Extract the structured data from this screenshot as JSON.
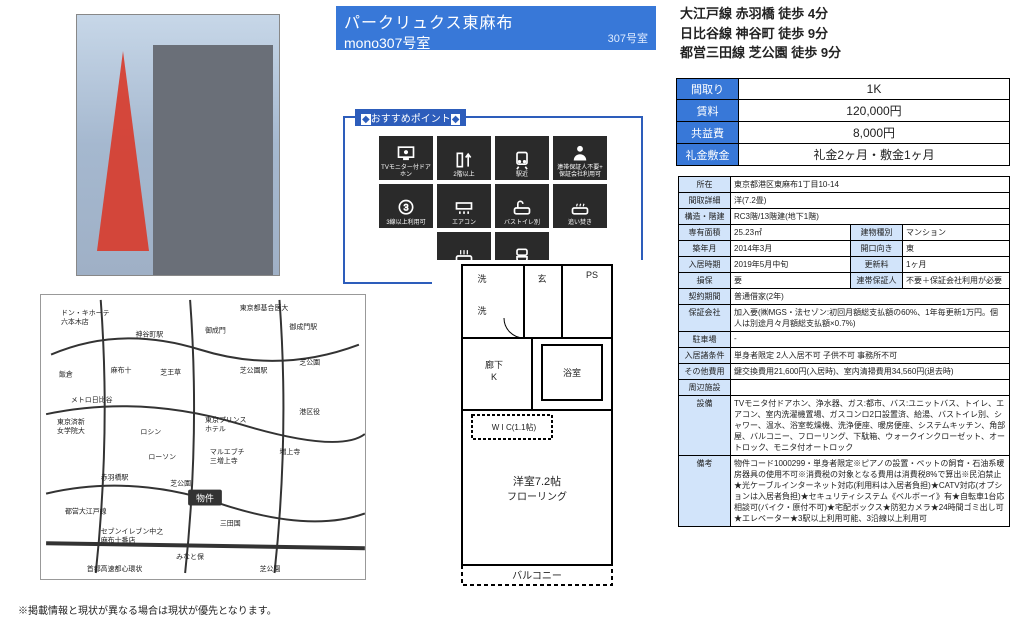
{
  "title": {
    "name": "パークリュクス東麻布",
    "room": "mono307号室",
    "roomnum": "307号室"
  },
  "access": [
    "大江戸線 赤羽橋 徒歩 4分",
    "日比谷線 神谷町 徒歩 9分",
    "都営三田線 芝公園 徒歩 9分"
  ],
  "summary": {
    "layout_label": "間取り",
    "layout": "1K",
    "rent_label": "賃料",
    "rent": "120,000円",
    "fee_label": "共益費",
    "fee": "8,000円",
    "deposit_label": "礼金敷金",
    "deposit": "礼金2ヶ月・敷金1ヶ月"
  },
  "details": {
    "addr_l": "所在",
    "addr": "東京都港区東麻布1丁目10-14",
    "madori_l": "間取詳細",
    "madori": "洋(7.2畳)",
    "kozo_l": "構造・階建",
    "kozo": "RC3階/13階建(地下1階)",
    "area_l": "専有面積",
    "area": "25.23㎡",
    "bldgtype_l": "建物種別",
    "bldgtype": "マンション",
    "built_l": "築年月",
    "built": "2014年3月",
    "houi_l": "開口向き",
    "houi": "東",
    "movein_l": "入居時期",
    "movein": "2019年5月中旬",
    "renew_l": "更新料",
    "renew": "1ヶ月",
    "sonpo_l": "損保",
    "sonpo": "要",
    "hoshonin_l": "連帯保証人",
    "hoshonin": "不要＋保証会社利用が必要",
    "kikan_l": "契約期間",
    "kikan": "普通借家(2年)",
    "hosho_l": "保証会社",
    "hosho": "加入要(㈱MGS・法セゾン:初回月額総支払額の60%、1年毎更新1万円。個人は別途月々月額総支払額×0.7%)",
    "park_l": "駐車場",
    "park": "-",
    "joken_l": "入居諸条件",
    "joken": "単身者限定 2人入居不可 子供不可 事務所不可",
    "sonota_l": "その他費用",
    "sonota": "鍵交換費用21,600円(入居時)、室内清掃費用34,560円(退去時)",
    "shuhen_l": "周辺施設",
    "shuhen": "",
    "setsubi_l": "設備",
    "setsubi": "TVモニタ付ドアホン、浄水器、ガス:都市、バス:ユニットバス、トイレ、エアコン、室内洗濯機置場、ガスコンロ2口設置済、給湯、バストイレ別、シャワー、温水、浴室乾燥機、洗浄便座、暖房便座、システムキッチン、角部屋、バルコニー、フローリング、下駄箱、ウォークインクローゼット、オートロック、モニタ付オートロック",
    "biko_l": "備考",
    "biko": "物件コード1000299・単身者限定※ピアノの設置・ペットの飼育・石油系暖房器具の使用不可※消費税の対象となる費用は消費税8%で算出※民泊禁止★光ケーブルインターネット対応(利用料は入居者負担)★CATV対応(オプションは入居者負担)★セキュリティシステム《ベルボーイ》有★自転車1台応相談可(バイク・原付不可)★宅配ボックス★防犯カメラ★24時間ゴミ出し可★エレベーター★3駅以上利用可能、3沿線以上利用可"
  },
  "points_header": "おすすめポイント",
  "features": [
    {
      "label": "TVモニター付ドアホン",
      "i": "tv"
    },
    {
      "label": "2階以上",
      "i": "up"
    },
    {
      "label": "駅近",
      "i": "train"
    },
    {
      "label": "連帯保証人不要+\n保証会社利用可",
      "i": "person"
    },
    {
      "label": "3線以上利用可",
      "i": "three"
    },
    {
      "label": "エアコン",
      "i": "ac"
    },
    {
      "label": "バストイレ別",
      "i": "bt"
    },
    {
      "label": "追い焚き",
      "i": "bath"
    },
    {
      "label": "浴室乾燥機",
      "i": "dry"
    },
    {
      "label": "洗浄便座",
      "i": "toilet"
    }
  ],
  "floorplan": {
    "room": "洋室7.2帖",
    "floor": "フローリング",
    "balcony": "バルコニー",
    "bath": "浴室",
    "dk": "廊下\nK",
    "wic": "W I C(1.1帖)",
    "gen": "玄",
    "sen": "洗",
    "yoku": "",
    "ps": "PS"
  },
  "map": {
    "marker": "物件"
  },
  "footnote": "※掲載情報と現状が異なる場合は現状が優先となります。"
}
